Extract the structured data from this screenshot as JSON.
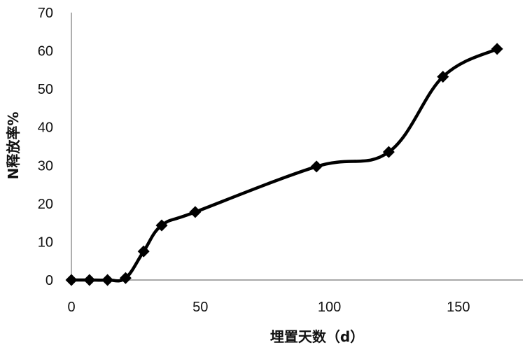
{
  "chart_data": {
    "type": "line",
    "title": "",
    "xlabel": "埋置天数（d）",
    "ylabel": "N释放率%",
    "xlim": [
      0,
      175
    ],
    "ylim": [
      0,
      70
    ],
    "x_ticks": [
      0,
      50,
      100,
      150
    ],
    "y_ticks": [
      0,
      10,
      20,
      30,
      40,
      50,
      60,
      70
    ],
    "grid": false,
    "legend": "none",
    "smooth": true,
    "marker": "diamond",
    "line_color": "#000000",
    "series": [
      {
        "x": [
          0,
          7,
          14,
          21,
          28,
          35,
          48,
          95,
          123,
          144,
          165
        ],
        "values": [
          0,
          0,
          0,
          0.5,
          7.5,
          14.3,
          17.8,
          29.7,
          33.5,
          53.2,
          60.5
        ]
      }
    ]
  }
}
